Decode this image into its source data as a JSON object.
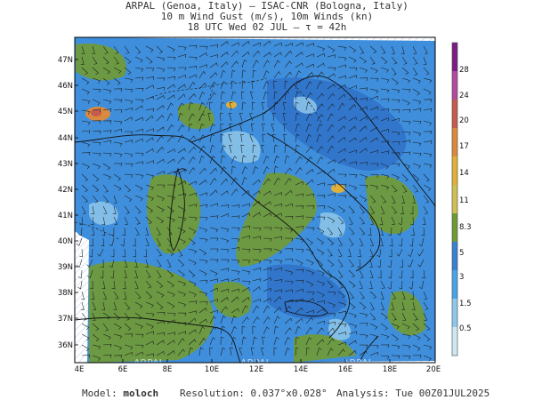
{
  "header": {
    "line1": "ARPAL (Genoa, Italy)  –  ISAC-CNR (Bologna, Italy)",
    "line2": "10 m Wind Gust (m/s), 10m Winds (kn)",
    "line3": "18 UTC Wed 02 JUL  –  τ = 42h"
  },
  "axes": {
    "lat_labels": [
      "47N",
      "46N",
      "45N",
      "44N",
      "43N",
      "42N",
      "41N",
      "40N",
      "39N",
      "38N",
      "37N",
      "36N"
    ],
    "lon_labels": [
      "4E",
      "6E",
      "8E",
      "10E",
      "12E",
      "14E",
      "16E",
      "18E",
      "20E"
    ]
  },
  "colorbar": {
    "labels": [
      "28",
      "24",
      "20",
      "17",
      "14",
      "11",
      "8.3",
      "5",
      "3",
      "1.5",
      "0.5"
    ],
    "colors": [
      "#7a1e86",
      "#b24a9e",
      "#c55a4f",
      "#d98a3e",
      "#e0b03a",
      "#cdbf52",
      "#6f9a3a",
      "#3a7fd0",
      "#4aa3e6",
      "#8fc7ea",
      "#cde8f4"
    ]
  },
  "footer": {
    "model_label": "Model:",
    "model_value": "moloch",
    "resolution_label": "Resolution:",
    "resolution_value": "0.037°x0.028°",
    "analysis_label": "Analysis:",
    "analysis_value": "Tue 00Z01JUL2025"
  },
  "watermark": "ARPAL"
}
